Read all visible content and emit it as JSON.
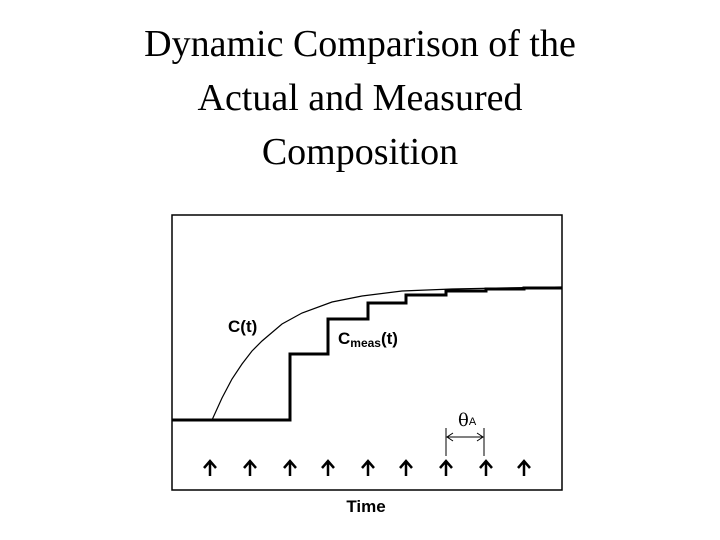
{
  "header": {
    "title_lines": [
      "Dynamic Comparison of the",
      "Actual and Measured",
      "Composition"
    ]
  },
  "diagram": {
    "actual_label": "C(t)",
    "measured_label": {
      "base": "C",
      "subscript": "meas",
      "suffix": "(t)"
    },
    "interval_label": {
      "base": "θ",
      "subscript": "A"
    },
    "x_axis_label": "Time"
  }
}
